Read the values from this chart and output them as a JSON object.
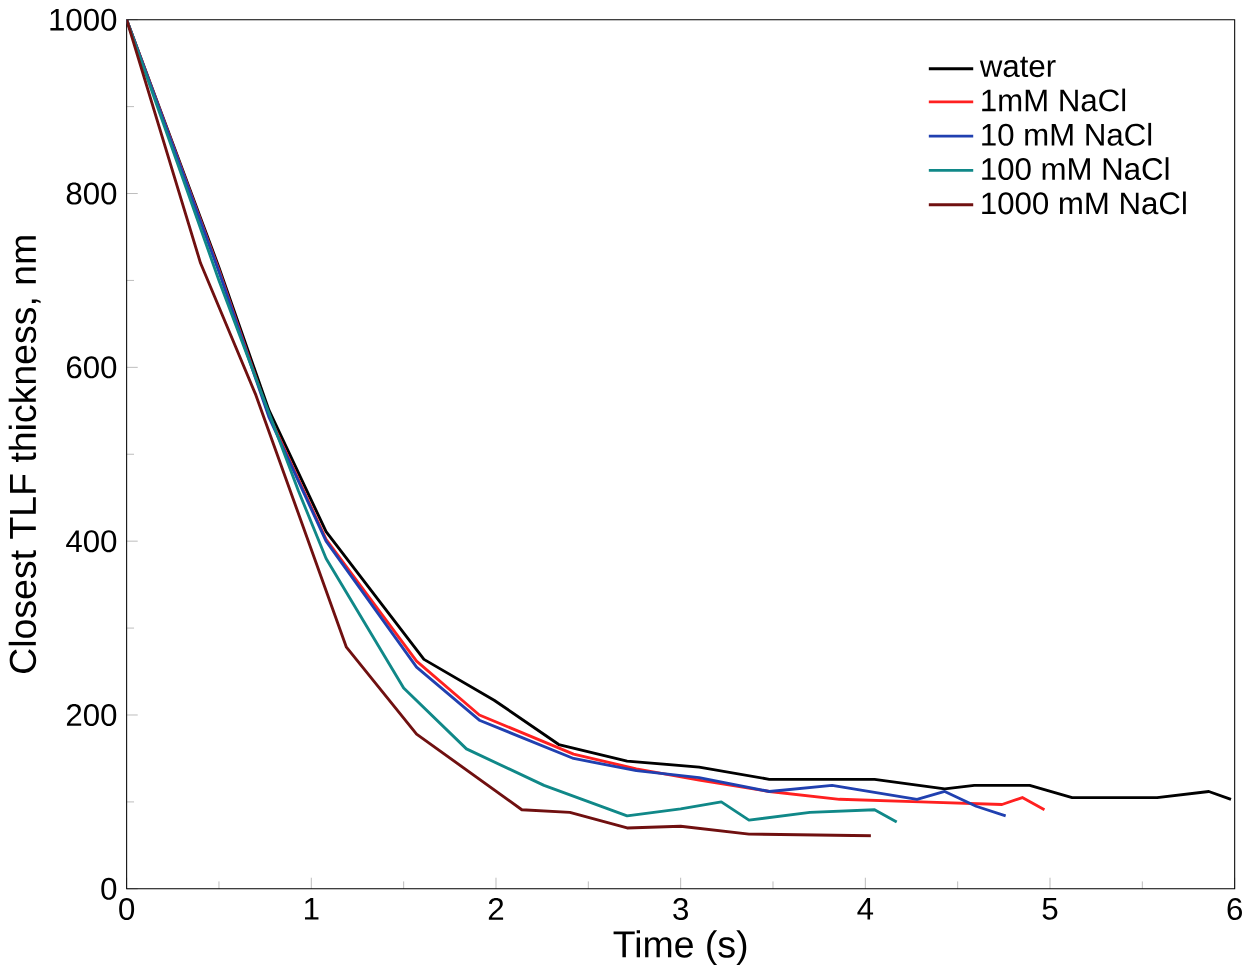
{
  "chart_data": {
    "type": "line",
    "xlabel": "Time (s)",
    "ylabel": "Closest TLF thickness, nm",
    "xlim": [
      0,
      6
    ],
    "ylim": [
      0,
      1000
    ],
    "xticks": [
      0,
      1,
      2,
      3,
      4,
      5,
      6
    ],
    "yticks": [
      0,
      200,
      400,
      600,
      800,
      1000
    ],
    "legend": "top right",
    "series": [
      {
        "name": "water",
        "color": "#000000",
        "x": [
          0,
          0.5,
          0.77,
          1.08,
          1.39,
          1.61,
          1.99,
          2.34,
          2.71,
          3.1,
          3.48,
          4.05,
          4.43,
          4.59,
          4.89,
          5.12,
          5.58,
          5.86,
          5.98
        ],
        "values": [
          1000,
          715,
          551,
          411,
          325,
          264,
          217,
          166,
          147,
          140,
          126,
          126,
          115,
          119,
          119,
          105,
          105,
          112,
          103
        ]
      },
      {
        "name": "1mM NaCl",
        "color": "#ff2020",
        "x": [
          0,
          0.5,
          0.77,
          1.08,
          1.57,
          1.91,
          2.42,
          2.76,
          3.1,
          3.48,
          3.86,
          4.3,
          4.74,
          4.85,
          4.97
        ],
        "values": [
          1000,
          712,
          545,
          402,
          262,
          200,
          155,
          138,
          125,
          112,
          103,
          100,
          97,
          105,
          91
        ]
      },
      {
        "name": "10 mM NaCl",
        "color": "#2040b0",
        "x": [
          0,
          0.5,
          0.77,
          1.08,
          1.57,
          1.91,
          2.42,
          2.76,
          3.1,
          3.48,
          3.82,
          4.28,
          4.43,
          4.6,
          4.76
        ],
        "values": [
          1000,
          710,
          543,
          400,
          255,
          194,
          150,
          136,
          128,
          112,
          119,
          103,
          112,
          95,
          84
        ]
      },
      {
        "name": "100 mM NaCl",
        "color": "#108888",
        "x": [
          0,
          0.5,
          0.93,
          1.08,
          1.5,
          1.84,
          2.26,
          2.71,
          3.0,
          3.22,
          3.37,
          3.7,
          4.05,
          4.17
        ],
        "values": [
          1000,
          700,
          458,
          380,
          231,
          161,
          119,
          84,
          92,
          100,
          79,
          88,
          91,
          77
        ]
      },
      {
        "name": "1000 mM NaCl",
        "color": "#701010",
        "x": [
          0,
          0.4,
          0.7,
          1.19,
          1.57,
          2.14,
          2.4,
          2.71,
          3.0,
          3.37,
          4.03
        ],
        "values": [
          1000,
          720,
          568,
          278,
          178,
          91,
          88,
          70,
          72,
          63,
          61
        ]
      }
    ]
  }
}
